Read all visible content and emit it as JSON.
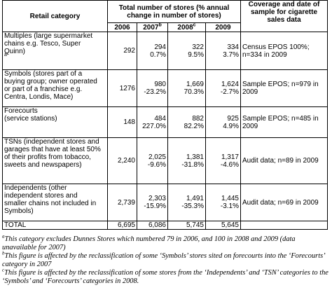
{
  "header": {
    "retail_category": "Retail  category",
    "total_stores_line1": "Total number of stores (% annual",
    "total_stores_line2": "change in number of stores)",
    "coverage_line1": "Coverage and date of",
    "coverage_line2": "sample for cigarette",
    "coverage_line3": "sales data"
  },
  "years": [
    {
      "label": "2006",
      "sup": ""
    },
    {
      "label": "2007",
      "sup": "b"
    },
    {
      "label": "2008",
      "sup": "c"
    },
    {
      "label": "2009",
      "sup": ""
    }
  ],
  "rows": [
    {
      "category_lines": [
        "Multiples (large supermarket",
        "chains e.g. Tesco, Super",
        "Quinn)"
      ],
      "category_sup": "a",
      "y2006": "292",
      "y2007": "294",
      "c2007": "0.7%",
      "y2008": "322",
      "c2008": "9.5%",
      "y2009": "334",
      "c2009": "3.7%",
      "coverage_lines": [
        "Census EPOS 100%;",
        "n=334 in 2009"
      ]
    },
    {
      "category_lines": [
        "Symbols (stores part of a",
        "buying group; owner operated",
        "or part of a franchise e.g.",
        "Centra, Londis, Mace)"
      ],
      "category_sup": "",
      "y2006": "1276",
      "y2007": "980",
      "c2007": "-23.2%",
      "y2008": "1,669",
      "c2008": "70.3%",
      "y2009": "1,624",
      "c2009": "-2.7%",
      "coverage_lines": [
        "Sample EPOS; n=979 in",
        "2009"
      ]
    },
    {
      "category_lines": [
        "Forecourts",
        "(service stations)"
      ],
      "category_sup": "",
      "y2006": "148",
      "y2007": "484",
      "c2007": "227.0%",
      "y2008": "882",
      "c2008": "82.2%",
      "y2009": "925",
      "c2009": "4.9%",
      "coverage_lines": [
        "Sample EPOS; n=485 in",
        "2009"
      ]
    },
    {
      "category_lines": [
        "TSNs (independent stores and",
        "garages that have at least 50%",
        "of their profits from tobacco,",
        "sweets and newspapers)"
      ],
      "category_sup": "",
      "y2006": "2,240",
      "y2007": "2,025",
      "c2007": "-9.6%",
      "y2008": "1,381",
      "c2008": "-31.8%",
      "y2009": "1,317",
      "c2009": "-4.6%",
      "coverage_lines": [
        "Audit data; n=89 in 2009"
      ]
    },
    {
      "category_lines": [
        "Independents (other",
        "independent stores and",
        "smaller chains not included in",
        "Symbols)"
      ],
      "category_sup": "",
      "y2006": "2,739",
      "y2007": "2,303",
      "c2007": "-15.9%",
      "y2008": "1,491",
      "c2008": "-35.3%",
      "y2009": "1,445",
      "c2009": "-3.1%",
      "coverage_lines": [
        "Audit data; n=69 in 2009"
      ]
    }
  ],
  "total": {
    "label": "TOTAL",
    "y2006": "6,695",
    "y2007": "6,086",
    "y2008": "5,745",
    "y2009": "5,645"
  },
  "footnotes": [
    {
      "sup": "a",
      "text": "This category  excludes Dunnes Stores which numbered 79 in 2006, and 100 in 2008 and 2009 (data unavailable for 2007)"
    },
    {
      "sup": "b",
      "text": "This figure is affected by the reclassification  of some ‘Symbols’ stores sited on forecourts into the ‘Forecourts’ category in 2007"
    },
    {
      "sup": "c",
      "text": "This  figure is affected by the reclassification of some stores from the ‘Independents’ and ‘TSN’ categories to the  ‘Symbols’ and ‘Forecourts’ categories in 2008."
    }
  ]
}
